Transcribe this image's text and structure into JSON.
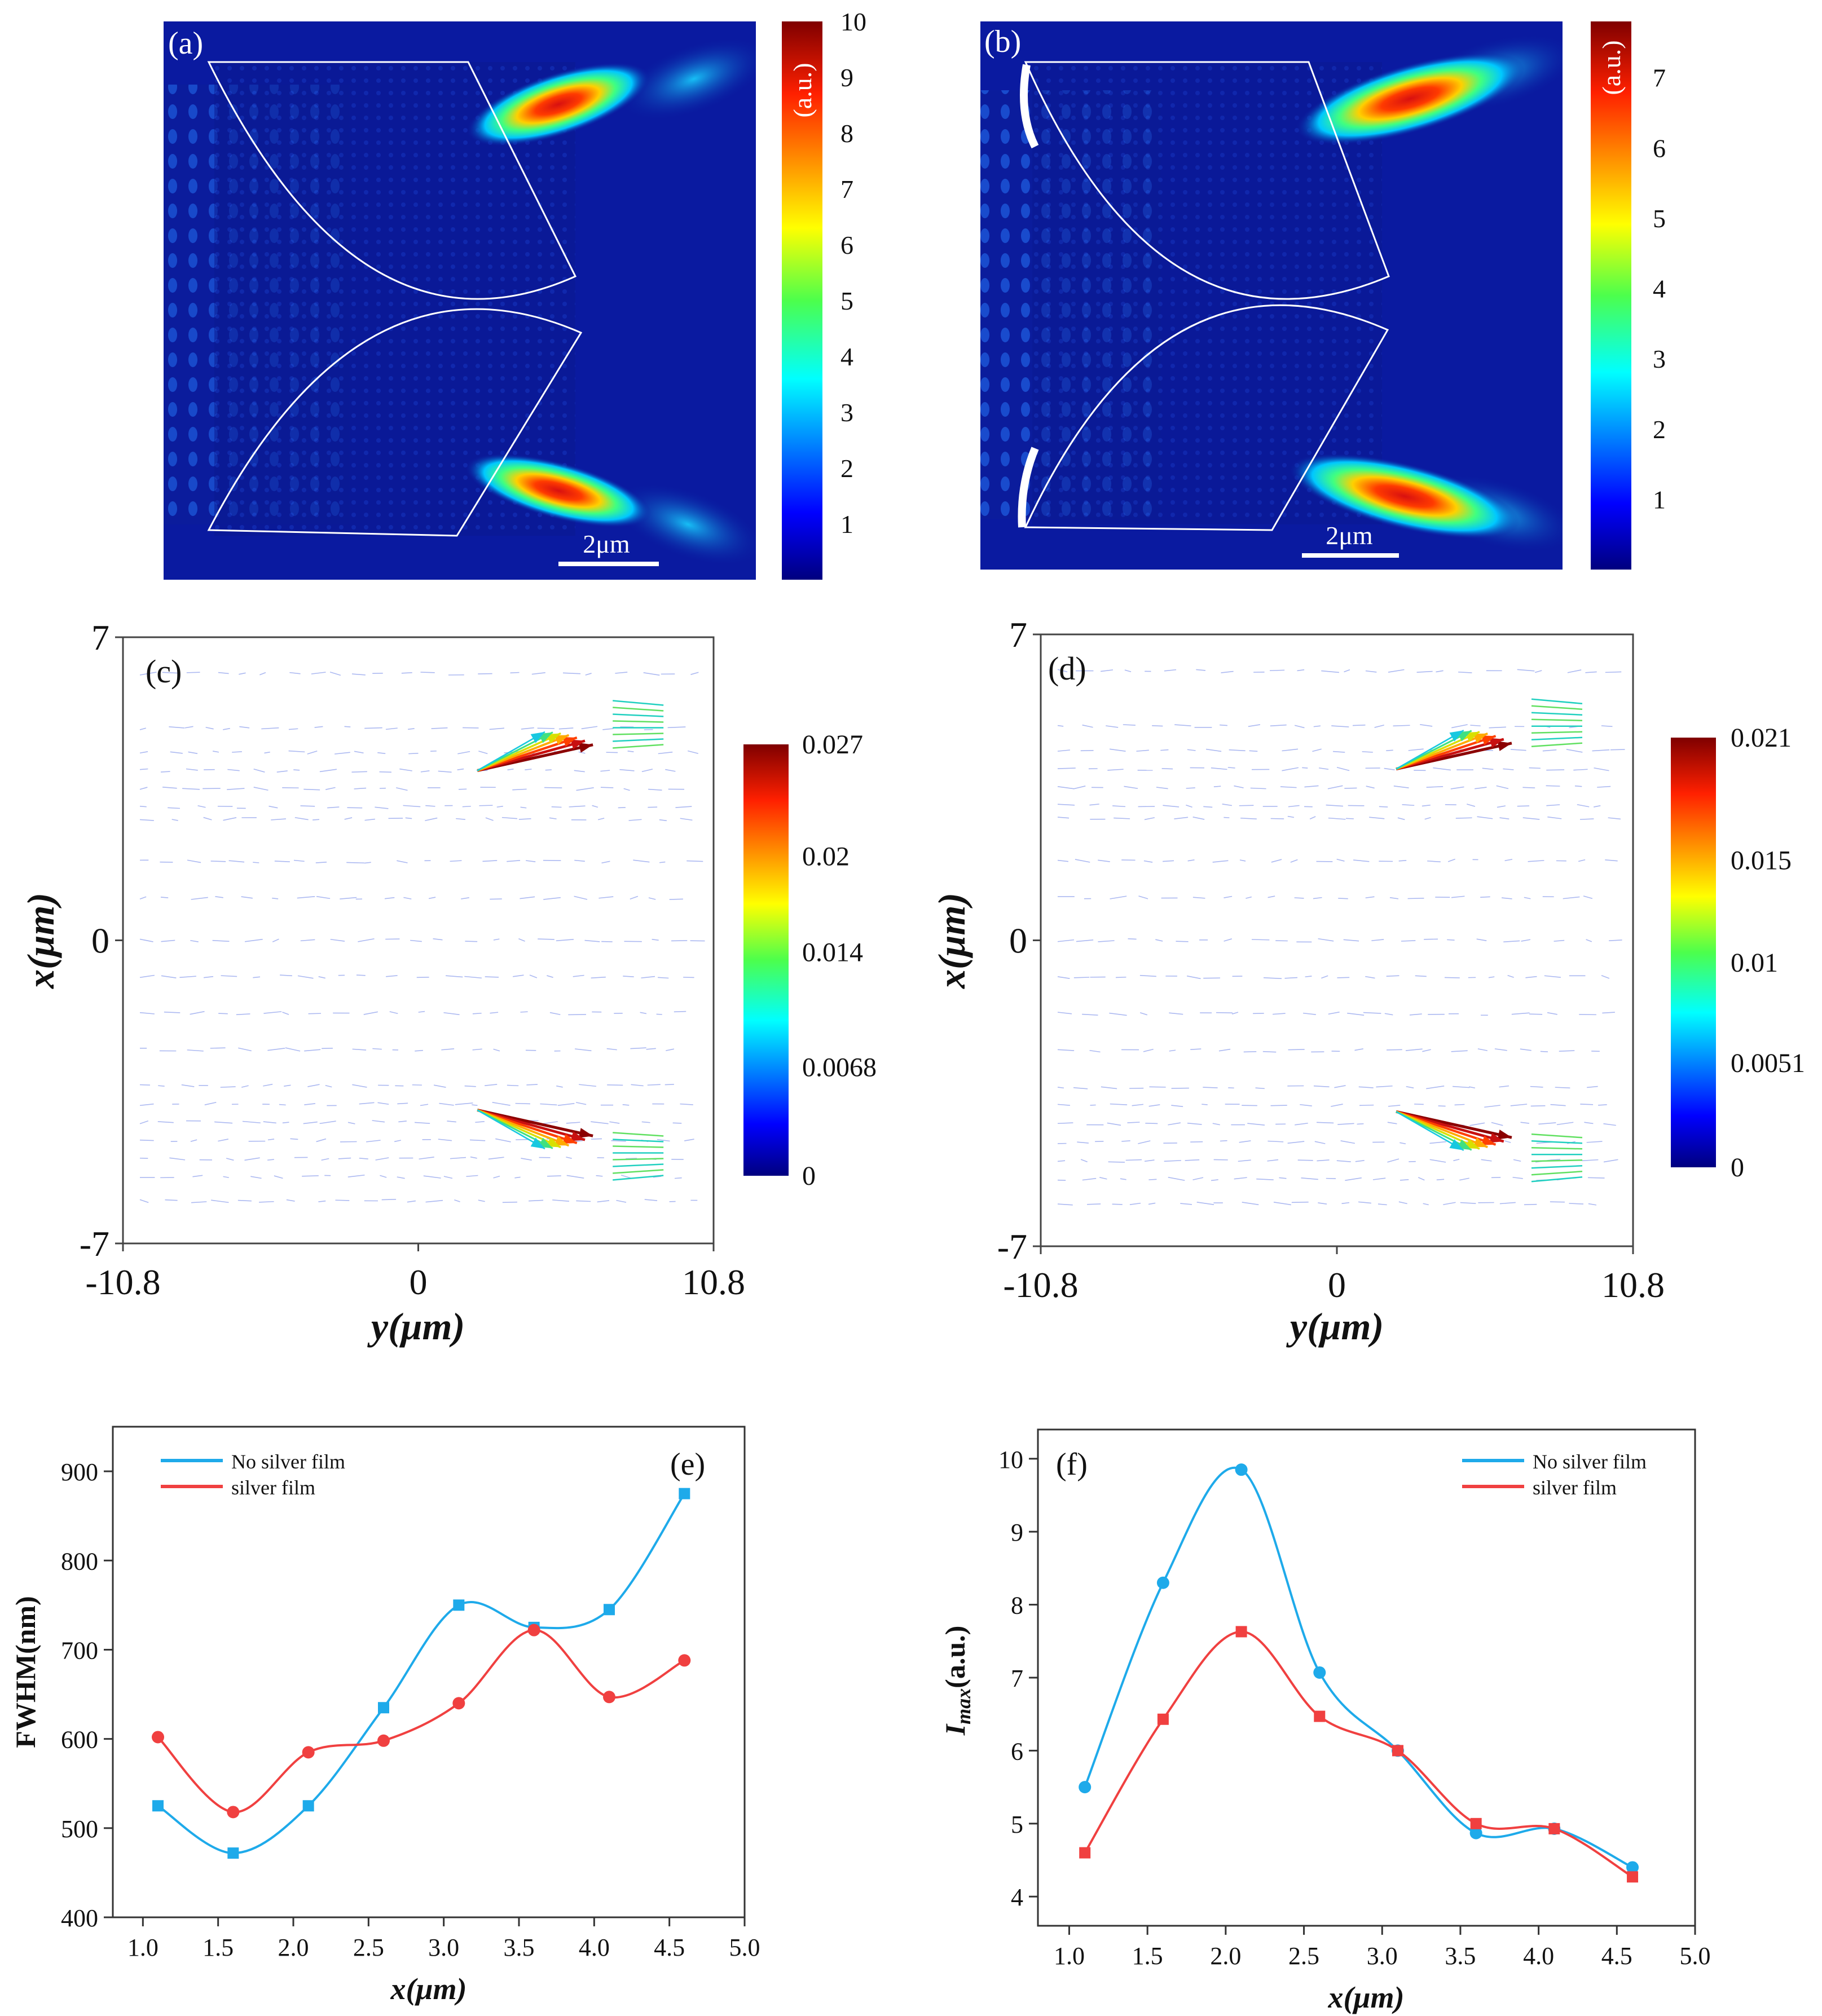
{
  "chart_data": [
    {
      "id": "a",
      "type": "heatmap",
      "panel_label": "(a)",
      "colorbar_title": "(a.u.)",
      "colorbar_range": [
        0,
        10
      ],
      "colorbar_ticks": [
        "1",
        "2",
        "3",
        "4",
        "5",
        "6",
        "7",
        "8",
        "9",
        "10"
      ],
      "scale_bar_label": "2μm",
      "description_features": "two focused hot spots near right edge of each lens"
    },
    {
      "id": "b",
      "type": "heatmap",
      "panel_label": "(b)",
      "colorbar_title": "(a.u.)",
      "colorbar_range": [
        0,
        7.8
      ],
      "colorbar_ticks": [
        "1",
        "2",
        "3",
        "4",
        "5",
        "6",
        "7"
      ],
      "scale_bar_label": "2μm"
    },
    {
      "id": "c",
      "type": "scatter",
      "panel_label": "(c)",
      "xlabel": "y(μm)",
      "ylabel": "x(μm)",
      "xlim": [
        -10.8,
        10.8
      ],
      "ylim": [
        -7,
        7
      ],
      "x_ticks": [
        "-10.8",
        "0",
        "10.8"
      ],
      "y_ticks": [
        "7",
        "0",
        "-7"
      ],
      "colorbar_range": [
        0,
        0.027
      ],
      "colorbar_ticks": [
        "0.027",
        "0.02",
        "0.014",
        "0.0068",
        "0"
      ]
    },
    {
      "id": "d",
      "type": "scatter",
      "panel_label": "(d)",
      "xlabel": "y(μm)",
      "ylabel": "x(μm)",
      "xlim": [
        -10.8,
        10.8
      ],
      "ylim": [
        -7,
        7
      ],
      "x_ticks": [
        "-10.8",
        "0",
        "10.8"
      ],
      "y_ticks": [
        "7",
        "0",
        "-7"
      ],
      "colorbar_range": [
        0,
        0.021
      ],
      "colorbar_ticks": [
        "0.021",
        "0.015",
        "0.01",
        "0.0051",
        "0"
      ]
    },
    {
      "id": "e",
      "type": "line",
      "panel_label": "(e)",
      "xlabel": "x(μm)",
      "ylabel": "FWHM(nm)",
      "xlim": [
        0.8,
        5.0
      ],
      "ylim": [
        400,
        950
      ],
      "x_ticks": [
        "1.0",
        "1.5",
        "2.0",
        "2.5",
        "3.0",
        "3.5",
        "4.0",
        "4.5",
        "5.0"
      ],
      "y_ticks": [
        "400",
        "500",
        "600",
        "700",
        "800",
        "900"
      ],
      "legend_position": "top-left",
      "x": [
        1.1,
        1.6,
        2.1,
        2.6,
        3.1,
        3.6,
        4.1,
        4.6
      ],
      "series": [
        {
          "name": "No silver film",
          "color": "#1eaaea",
          "marker": "square",
          "values": [
            525,
            472,
            525,
            635,
            750,
            725,
            745,
            875
          ]
        },
        {
          "name": "silver film",
          "color": "#f04040",
          "marker": "circle",
          "values": [
            602,
            518,
            585,
            598,
            640,
            722,
            647,
            688
          ]
        }
      ]
    },
    {
      "id": "f",
      "type": "line",
      "panel_label": "(f)",
      "xlabel": "x(μm)",
      "ylabel": "Imax(a.u.)",
      "xlim": [
        0.8,
        5.0
      ],
      "ylim": [
        3.6,
        10.4
      ],
      "x_ticks": [
        "1.0",
        "1.5",
        "2.0",
        "2.5",
        "3.0",
        "3.5",
        "4.0",
        "4.5",
        "5.0"
      ],
      "y_ticks": [
        "4",
        "5",
        "6",
        "7",
        "8",
        "9",
        "10"
      ],
      "legend_position": "top-right",
      "x": [
        1.1,
        1.6,
        2.1,
        2.6,
        3.1,
        3.6,
        4.1,
        4.6
      ],
      "series": [
        {
          "name": "No silver film",
          "color": "#1eaaea",
          "marker": "circle",
          "values": [
            5.5,
            8.3,
            9.85,
            7.07,
            6.0,
            4.87,
            4.93,
            4.4
          ]
        },
        {
          "name": "silver film",
          "color": "#f04040",
          "marker": "square",
          "values": [
            4.6,
            6.43,
            7.63,
            6.47,
            6.0,
            5.0,
            4.93,
            4.27
          ]
        }
      ]
    }
  ],
  "colors": {
    "heat_background": "#0a1aa0",
    "axis": "#333333",
    "blue_series": "#1eaaea",
    "red_series": "#f04040"
  }
}
